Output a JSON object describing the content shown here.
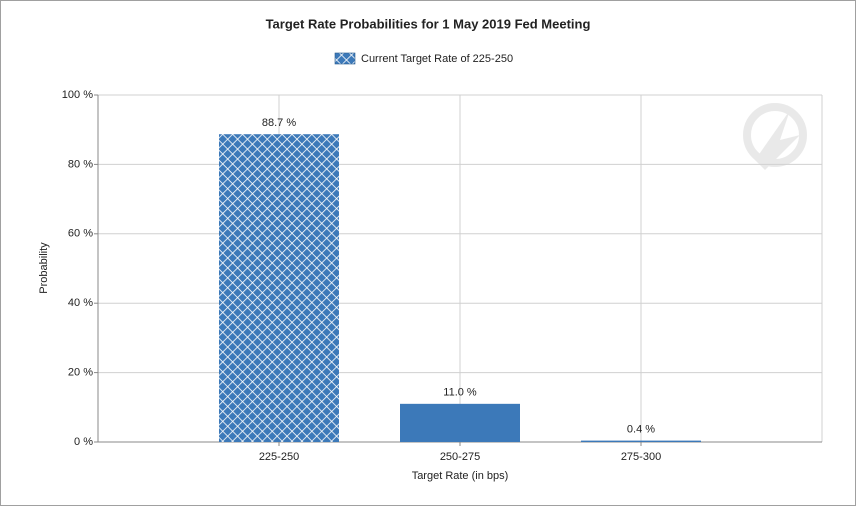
{
  "chart_data": {
    "type": "bar",
    "title": "Target Rate Probabilities for 1 May 2019 Fed Meeting",
    "x_label": "Target Rate (in bps)",
    "y_label": "Probability",
    "categories": [
      "225-250",
      "250-275",
      "275-300"
    ],
    "series": [
      {
        "name": "Current Target Rate of 225-250",
        "color": "#3c79b9",
        "values": [
          88.7,
          11.0,
          0.4
        ],
        "value_labels": [
          "88.7 %",
          "11.0 %",
          "0.4 %"
        ],
        "bar_patterns": [
          "crosshatch",
          "solid",
          "solid"
        ],
        "legend_pattern": "crosshatch"
      }
    ],
    "ylim": [
      0,
      100
    ],
    "yticks": [
      {
        "value": 0,
        "label": "0 %"
      },
      {
        "value": 20,
        "label": "20 %"
      },
      {
        "value": 40,
        "label": "40 %"
      },
      {
        "value": 60,
        "label": "60 %"
      },
      {
        "value": 80,
        "label": "80 %"
      },
      {
        "value": 100,
        "label": "100 %"
      }
    ],
    "grid": true,
    "legend_position": "top"
  }
}
